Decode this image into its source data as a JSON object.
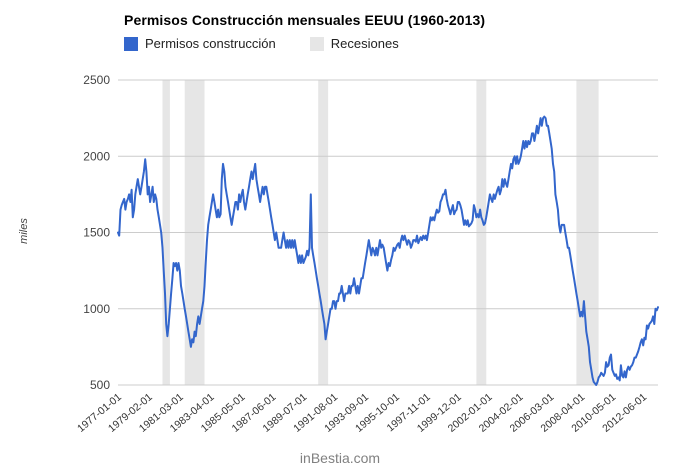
{
  "chart_data": {
    "type": "line",
    "title": "Permisos Construcción mensuales EEUU (1960-2013)",
    "xlabel": "",
    "ylabel": "miles",
    "ylim": [
      500,
      2500
    ],
    "y_ticks": [
      500,
      1000,
      1500,
      2000,
      2500
    ],
    "grid": true,
    "grid_color": "#cccccc",
    "recession_color": "#e6e6e6",
    "legend_position": "top",
    "legend": [
      {
        "label": "Permisos construcción",
        "color": "#3366cc",
        "type": "line"
      },
      {
        "label": "Recesiones",
        "color": "#e6e6e6",
        "type": "band"
      }
    ],
    "x_start": "1977-01",
    "x_step_months": 1,
    "x_tick_every_months": 25,
    "x_tick_labels": [
      "1977-01-01",
      "1979-02-01",
      "1981-03-01",
      "1983-04-01",
      "1985-05-01",
      "1987-06-01",
      "1989-07-01",
      "1991-08-01",
      "1993-09-01",
      "1995-10-01",
      "1997-11-01",
      "1999-12-01",
      "2002-01-01",
      "2004-02-01",
      "2006-03-01",
      "2008-04-01",
      "2010-05-01",
      "2012-06-01"
    ],
    "recessions": [
      {
        "start": "1980-01",
        "end": "1980-07"
      },
      {
        "start": "1981-07",
        "end": "1982-11"
      },
      {
        "start": "1990-07",
        "end": "1991-03"
      },
      {
        "start": "2001-03",
        "end": "2001-11"
      },
      {
        "start": "2007-12",
        "end": "2009-06"
      }
    ],
    "series": [
      {
        "name": "Permisos construcción",
        "color": "#3366cc",
        "values": [
          1500,
          1480,
          1650,
          1680,
          1700,
          1720,
          1650,
          1700,
          1720,
          1750,
          1700,
          1780,
          1600,
          1650,
          1750,
          1800,
          1850,
          1800,
          1750,
          1800,
          1850,
          1900,
          1980,
          1900,
          1750,
          1800,
          1700,
          1750,
          1800,
          1700,
          1750,
          1720,
          1650,
          1600,
          1550,
          1500,
          1400,
          1250,
          1100,
          900,
          820,
          900,
          1000,
          1100,
          1200,
          1300,
          1280,
          1300,
          1250,
          1300,
          1250,
          1150,
          1100,
          1050,
          1000,
          950,
          900,
          850,
          800,
          750,
          800,
          780,
          850,
          820,
          900,
          950,
          900,
          950,
          1000,
          1050,
          1150,
          1300,
          1450,
          1550,
          1600,
          1650,
          1700,
          1750,
          1700,
          1650,
          1600,
          1650,
          1600,
          1620,
          1850,
          1950,
          1900,
          1800,
          1750,
          1700,
          1650,
          1600,
          1550,
          1600,
          1650,
          1700,
          1700,
          1650,
          1750,
          1700,
          1750,
          1780,
          1700,
          1650,
          1700,
          1750,
          1800,
          1850,
          1900,
          1850,
          1900,
          1950,
          1850,
          1800,
          1750,
          1700,
          1750,
          1800,
          1750,
          1800,
          1800,
          1750,
          1700,
          1650,
          1600,
          1550,
          1500,
          1450,
          1500,
          1450,
          1400,
          1400,
          1400,
          1450,
          1500,
          1450,
          1400,
          1450,
          1400,
          1450,
          1400,
          1450,
          1400,
          1450,
          1400,
          1350,
          1300,
          1350,
          1300,
          1350,
          1300,
          1320,
          1340,
          1380,
          1350,
          1400,
          1750,
          1400,
          1350,
          1300,
          1250,
          1200,
          1150,
          1100,
          1050,
          1000,
          950,
          900,
          800,
          850,
          900,
          950,
          1000,
          1000,
          1050,
          1050,
          1000,
          1050,
          1050,
          1100,
          1100,
          1150,
          1100,
          1050,
          1100,
          1100,
          1100,
          1150,
          1100,
          1150,
          1150,
          1200,
          1150,
          1100,
          1150,
          1100,
          1150,
          1200,
          1200,
          1250,
          1300,
          1350,
          1400,
          1450,
          1400,
          1350,
          1400,
          1380,
          1350,
          1400,
          1350,
          1400,
          1450,
          1400,
          1420,
          1400,
          1350,
          1300,
          1250,
          1300,
          1280,
          1320,
          1350,
          1400,
          1380,
          1400,
          1420,
          1430,
          1400,
          1450,
          1480,
          1450,
          1480,
          1450,
          1420,
          1450,
          1440,
          1400,
          1420,
          1450,
          1450,
          1440,
          1480,
          1430,
          1450,
          1470,
          1450,
          1480,
          1460,
          1480,
          1450,
          1500,
          1550,
          1600,
          1580,
          1600,
          1580,
          1620,
          1650,
          1630,
          1640,
          1700,
          1720,
          1750,
          1750,
          1780,
          1720,
          1680,
          1650,
          1620,
          1650,
          1680,
          1620,
          1640,
          1650,
          1700,
          1700,
          1680,
          1650,
          1600,
          1550,
          1580,
          1550,
          1580,
          1540,
          1550,
          1560,
          1580,
          1680,
          1650,
          1600,
          1620,
          1600,
          1650,
          1600,
          1580,
          1550,
          1560,
          1600,
          1650,
          1700,
          1750,
          1720,
          1700,
          1750,
          1720,
          1750,
          1780,
          1800,
          1750,
          1780,
          1850,
          1800,
          1850,
          1820,
          1800,
          1850,
          1900,
          1950,
          1920,
          1980,
          2000,
          1950,
          2000,
          1950,
          1970,
          2000,
          2050,
          2100,
          2050,
          2100,
          2060,
          2100,
          2080,
          2100,
          2150,
          2150,
          2100,
          2150,
          2200,
          2150,
          2200,
          2250,
          2200,
          2250,
          2260,
          2250,
          2200,
          2200,
          2150,
          2100,
          2050,
          1950,
          1900,
          1750,
          1700,
          1650,
          1550,
          1500,
          1550,
          1550,
          1550,
          1500,
          1450,
          1400,
          1400,
          1350,
          1300,
          1250,
          1200,
          1150,
          1100,
          1050,
          1000,
          950,
          980,
          950,
          1050,
          950,
          850,
          800,
          750,
          650,
          600,
          550,
          520,
          510,
          500,
          520,
          550,
          560,
          580,
          570,
          560,
          580,
          650,
          620,
          630,
          680,
          700,
          600,
          580,
          560,
          570,
          540,
          550,
          530,
          630,
          560,
          550,
          590,
          550,
          600,
          620,
          600,
          620,
          630,
          650,
          680,
          680,
          700,
          720,
          750,
          780,
          800,
          760,
          810,
          800,
          890,
          870,
          900,
          910,
          920,
          950,
          900,
          1000,
          990,
          1010
        ]
      }
    ]
  },
  "footer": {
    "watermark": "inBestia.com"
  }
}
